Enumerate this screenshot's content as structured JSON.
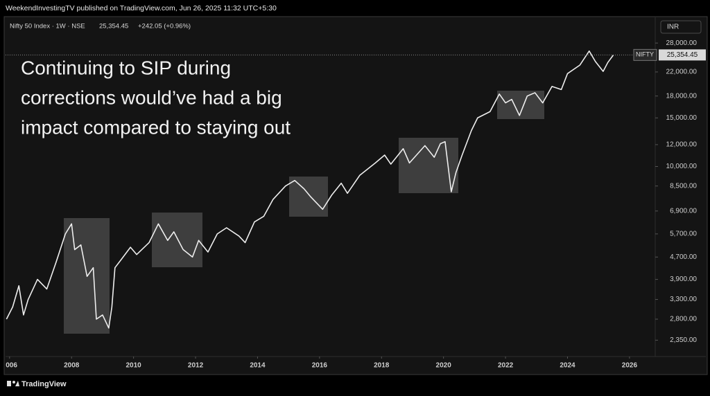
{
  "header": {
    "published": "WeekendInvestingTV published on TradingView.com, Jun 26, 2025 11:32 UTC+5:30",
    "symbol": "Nifty 50 Index · 1W · NSE",
    "price": "25,354.45",
    "change": "+242.05 (+0.96%)",
    "currency": "INR"
  },
  "annotation": [
    "Continuing to SIP during",
    "corrections would’ve had a big",
    "impact compared to staying out"
  ],
  "footer": "TradingView",
  "chart_data": {
    "type": "line",
    "log_scale": true,
    "series_name": "NIFTY",
    "color": "#eeeeee",
    "x": [
      2005.9,
      2006.1,
      2006.3,
      2006.45,
      2006.6,
      2006.9,
      2007.2,
      2007.5,
      2007.8,
      2008.0,
      2008.1,
      2008.3,
      2008.5,
      2008.7,
      2008.8,
      2009.0,
      2009.2,
      2009.3,
      2009.4,
      2009.6,
      2009.9,
      2010.1,
      2010.5,
      2010.8,
      2011.1,
      2011.3,
      2011.6,
      2011.9,
      2012.1,
      2012.4,
      2012.7,
      2013.0,
      2013.4,
      2013.6,
      2013.9,
      2014.2,
      2014.5,
      2014.9,
      2015.2,
      2015.5,
      2015.7,
      2016.1,
      2016.4,
      2016.7,
      2016.9,
      2017.3,
      2017.8,
      2018.1,
      2018.3,
      2018.7,
      2018.9,
      2019.4,
      2019.7,
      2019.9,
      2020.05,
      2020.25,
      2020.4,
      2020.6,
      2020.9,
      2021.1,
      2021.5,
      2021.8,
      2022.0,
      2022.2,
      2022.45,
      2022.7,
      2022.95,
      2023.2,
      2023.5,
      2023.8,
      2024.0,
      2024.4,
      2024.7,
      2024.9,
      2025.15,
      2025.3,
      2025.48
    ],
    "values": [
      2800,
      3100,
      3700,
      2900,
      3300,
      3900,
      3600,
      4500,
      5700,
      6200,
      5000,
      5200,
      4000,
      4300,
      2800,
      2900,
      2600,
      3100,
      4300,
      4600,
      5100,
      4800,
      5300,
      6200,
      5400,
      5800,
      5000,
      4700,
      5400,
      4900,
      5700,
      6000,
      5600,
      5300,
      6300,
      6600,
      7600,
      8500,
      8900,
      8300,
      7800,
      7000,
      7900,
      8700,
      8000,
      9300,
      10300,
      11000,
      10200,
      11600,
      10300,
      11900,
      10800,
      12100,
      12300,
      8100,
      9500,
      11000,
      13500,
      15000,
      15800,
      18300,
      17000,
      17500,
      15300,
      18000,
      18500,
      17000,
      19500,
      19000,
      21700,
      23300,
      26200,
      24000,
      22100,
      23800,
      25354.45
    ],
    "last_label": {
      "value": 25354.45,
      "label": "25,354.45"
    },
    "xlim": [
      2005.87,
      2026.83
    ],
    "xticks": [
      2006,
      2008,
      2010,
      2012,
      2014,
      2016,
      2018,
      2020,
      2022,
      2024,
      2026
    ],
    "ylim": [
      2050,
      34700
    ],
    "yticks": [
      {
        "value": 2350,
        "label": "2,350.00"
      },
      {
        "value": 2800,
        "label": "2,800.00"
      },
      {
        "value": 3300,
        "label": "3,300.00"
      },
      {
        "value": 3900,
        "label": "3,900.00"
      },
      {
        "value": 4700,
        "label": "4,700.00"
      },
      {
        "value": 5700,
        "label": "5,700.00"
      },
      {
        "value": 6900,
        "label": "6,900.00"
      },
      {
        "value": 8500,
        "label": "8,500.00"
      },
      {
        "value": 10000,
        "label": "10,000.00"
      },
      {
        "value": 12000,
        "label": "12,000.00"
      },
      {
        "value": 15000,
        "label": "15,000.00"
      },
      {
        "value": 18000,
        "label": "18,000.00"
      },
      {
        "value": 22000,
        "label": "22,000.00"
      },
      {
        "value": 28000,
        "label": "28,000.00"
      }
    ]
  }
}
